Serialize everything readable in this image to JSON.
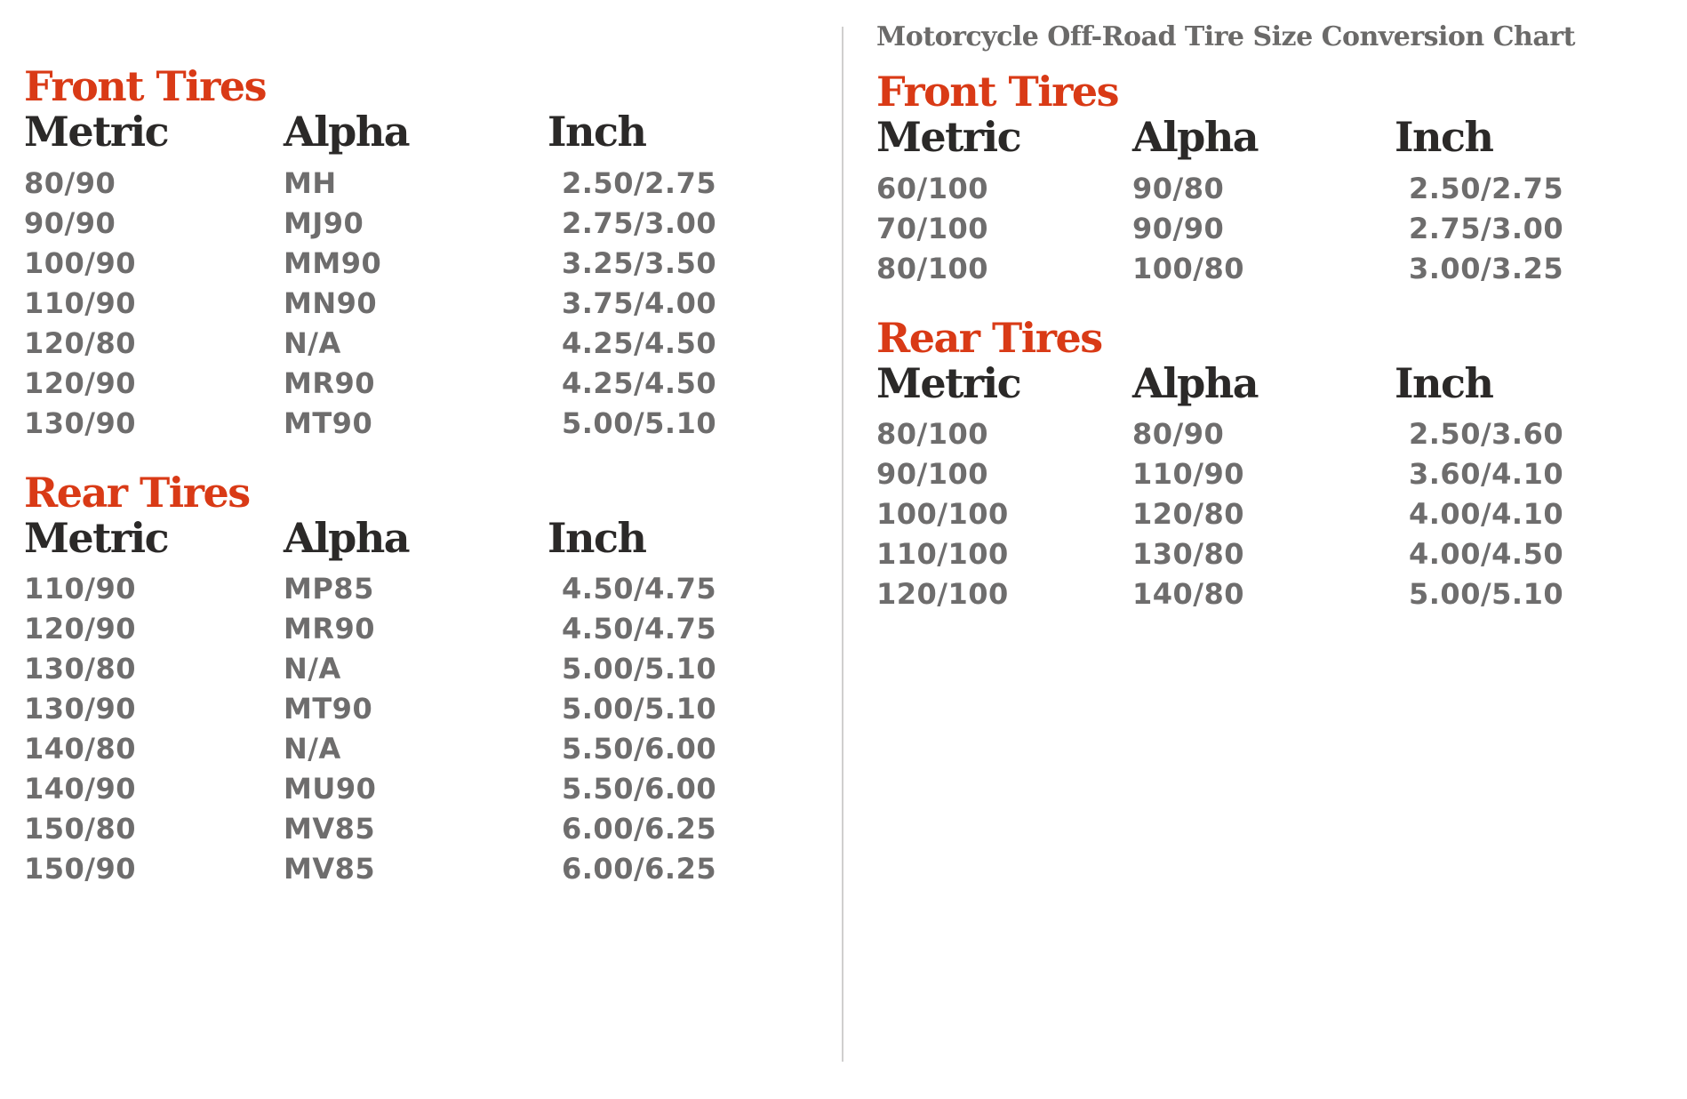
{
  "colors": {
    "accent_red": "#d93a16",
    "header_text": "#2b2928",
    "data_text": "#6e6d6d",
    "title_text": "#6b6a69",
    "divider": "#d0cfce",
    "background": "#ffffff"
  },
  "chart_data": {
    "type": "table",
    "title": "Motorcycle Off-Road Tire Size Conversion Chart",
    "panels": [
      {
        "name": "left-conversion-chart",
        "sections": [
          {
            "heading": "Front Tires",
            "columns": [
              "Metric",
              "Alpha",
              "Inch"
            ],
            "rows": [
              [
                "80/90",
                "MH",
                "2.50/2.75"
              ],
              [
                "90/90",
                "MJ90",
                "2.75/3.00"
              ],
              [
                "100/90",
                "MM90",
                "3.25/3.50"
              ],
              [
                "110/90",
                "MN90",
                "3.75/4.00"
              ],
              [
                "120/80",
                "N/A",
                "4.25/4.50"
              ],
              [
                "120/90",
                "MR90",
                "4.25/4.50"
              ],
              [
                "130/90",
                "MT90",
                "5.00/5.10"
              ]
            ]
          },
          {
            "heading": "Rear Tires",
            "columns": [
              "Metric",
              "Alpha",
              "Inch"
            ],
            "rows": [
              [
                "110/90",
                "MP85",
                "4.50/4.75"
              ],
              [
                "120/90",
                "MR90",
                "4.50/4.75"
              ],
              [
                "130/80",
                "N/A",
                "5.00/5.10"
              ],
              [
                "130/90",
                "MT90",
                "5.00/5.10"
              ],
              [
                "140/80",
                "N/A",
                "5.50/6.00"
              ],
              [
                "140/90",
                "MU90",
                "5.50/6.00"
              ],
              [
                "150/80",
                "MV85",
                "6.00/6.25"
              ],
              [
                "150/90",
                "MV85",
                "6.00/6.25"
              ]
            ]
          }
        ]
      },
      {
        "name": "off-road-conversion-chart",
        "title": "Motorcycle Off-Road Tire Size Conversion Chart",
        "sections": [
          {
            "heading": "Front Tires",
            "columns": [
              "Metric",
              "Alpha",
              "Inch"
            ],
            "rows": [
              [
                "60/100",
                "90/80",
                "2.50/2.75"
              ],
              [
                "70/100",
                "90/90",
                "2.75/3.00"
              ],
              [
                "80/100",
                "100/80",
                "3.00/3.25"
              ]
            ]
          },
          {
            "heading": "Rear Tires",
            "columns": [
              "Metric",
              "Alpha",
              "Inch"
            ],
            "rows": [
              [
                "80/100",
                "80/90",
                "2.50/3.60"
              ],
              [
                "90/100",
                "110/90",
                "3.60/4.10"
              ],
              [
                "100/100",
                "120/80",
                "4.00/4.10"
              ],
              [
                "110/100",
                "130/80",
                "4.00/4.50"
              ],
              [
                "120/100",
                "140/80",
                "5.00/5.10"
              ]
            ]
          }
        ]
      }
    ]
  }
}
